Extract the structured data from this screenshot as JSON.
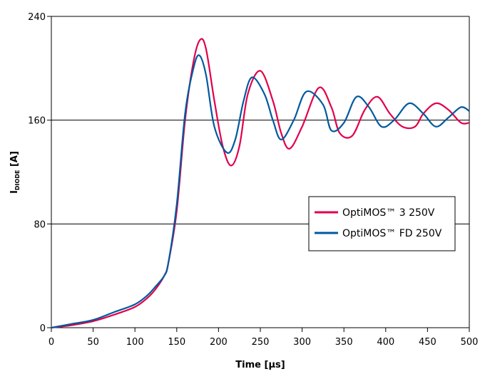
{
  "chart_data": {
    "type": "line",
    "title": "",
    "xlabel": "Time [µs]",
    "ylabel_main": "I",
    "ylabel_sub": "DIODE",
    "ylabel_unit": " [A]",
    "xlim": [
      0,
      500
    ],
    "ylim": [
      0,
      240
    ],
    "xticks": [
      0,
      50,
      100,
      150,
      200,
      250,
      300,
      350,
      400,
      450,
      500
    ],
    "yticks": [
      0,
      80,
      160,
      240
    ],
    "grid": "horizontal",
    "legend_position": "right-middle",
    "series": [
      {
        "name": "OptiMOS™ 3 250V",
        "color": "#e2004a",
        "x": [
          0,
          25,
          50,
          75,
          100,
          115,
          125,
          135,
          140,
          150,
          160,
          170,
          178,
          185,
          195,
          205,
          215,
          225,
          235,
          250,
          265,
          275,
          285,
          300,
          320,
          335,
          345,
          360,
          375,
          390,
          405,
          420,
          435,
          445,
          460,
          475,
          490,
          500
        ],
        "y": [
          0,
          2,
          5,
          10,
          16,
          23,
          30,
          40,
          50,
          90,
          160,
          205,
          222,
          215,
          175,
          140,
          125,
          140,
          180,
          198,
          175,
          150,
          138,
          155,
          185,
          170,
          150,
          148,
          168,
          178,
          165,
          155,
          155,
          165,
          173,
          168,
          158,
          158
        ]
      },
      {
        "name": "OptiMOS™ FD 250V",
        "color": "#005a9e",
        "x": [
          0,
          25,
          50,
          75,
          100,
          115,
          125,
          135,
          140,
          150,
          160,
          170,
          177,
          185,
          195,
          210,
          220,
          230,
          240,
          255,
          265,
          275,
          290,
          305,
          325,
          335,
          350,
          365,
          380,
          395,
          410,
          428,
          445,
          460,
          475,
          490,
          500
        ],
        "y": [
          0,
          3,
          6,
          12,
          18,
          25,
          32,
          40,
          50,
          95,
          165,
          200,
          210,
          195,
          155,
          135,
          145,
          175,
          193,
          180,
          160,
          145,
          160,
          182,
          172,
          152,
          158,
          178,
          170,
          155,
          160,
          173,
          165,
          155,
          162,
          170,
          167
        ]
      }
    ]
  }
}
